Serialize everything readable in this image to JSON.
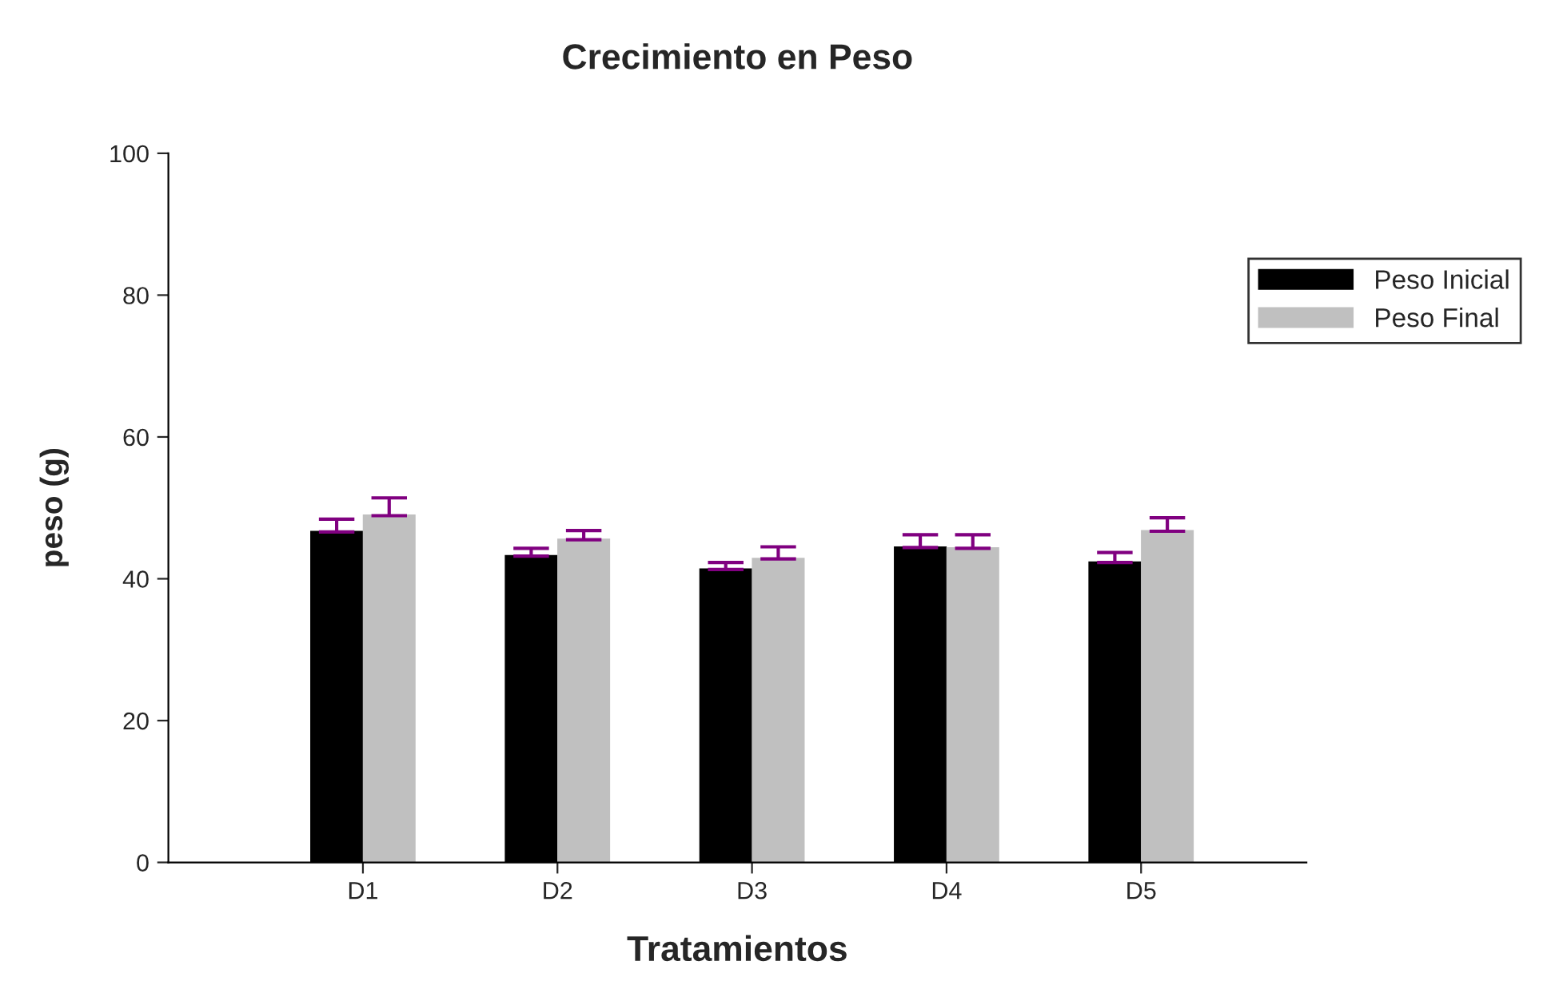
{
  "chart_data": {
    "type": "bar",
    "title": "Crecimiento en Peso",
    "xlabel": "Tratamientos",
    "ylabel": "peso (g)",
    "categories": [
      "D1",
      "D2",
      "D3",
      "D4",
      "D5"
    ],
    "series": [
      {
        "name": "Peso Inicial",
        "color": "#000000",
        "values": [
          46.6,
          43.2,
          41.3,
          44.4,
          42.3
        ],
        "errors": [
          1.8,
          1.1,
          1.0,
          1.8,
          1.4
        ]
      },
      {
        "name": "Peso Final",
        "color": "#c0c0c0",
        "values": [
          48.9,
          45.5,
          42.8,
          44.3,
          46.7
        ],
        "errors": [
          2.5,
          1.3,
          1.7,
          1.9,
          1.9
        ]
      }
    ],
    "ylim": [
      0,
      100
    ],
    "yticks": [
      0,
      20,
      40,
      60,
      80,
      100
    ],
    "grid": false,
    "legend": "top right"
  }
}
